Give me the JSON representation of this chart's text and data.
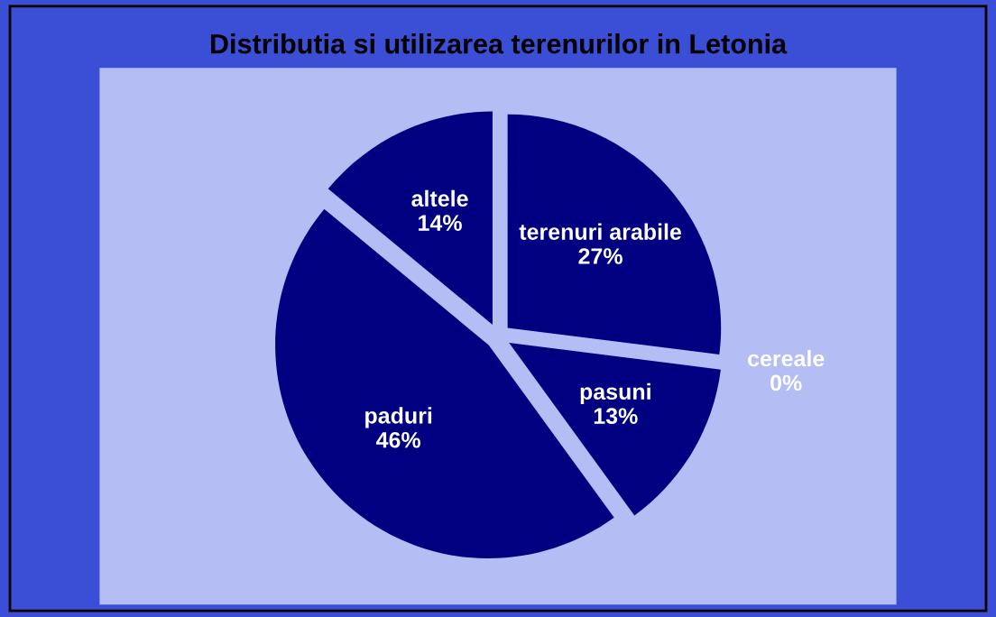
{
  "chart_data": {
    "type": "pie",
    "title": "Distributia si utilizarea terenurilor in Letonia",
    "categories": [
      "terenuri arabile",
      "cereale",
      "pasuni",
      "paduri",
      "altele"
    ],
    "values": [
      27,
      0,
      13,
      46,
      14
    ],
    "colors": [
      "#000080",
      "#000080",
      "#000080",
      "#000080",
      "#000080"
    ],
    "value_labels": [
      "27%",
      "0%",
      "13%",
      "46%",
      "14%"
    ],
    "legend": false
  }
}
